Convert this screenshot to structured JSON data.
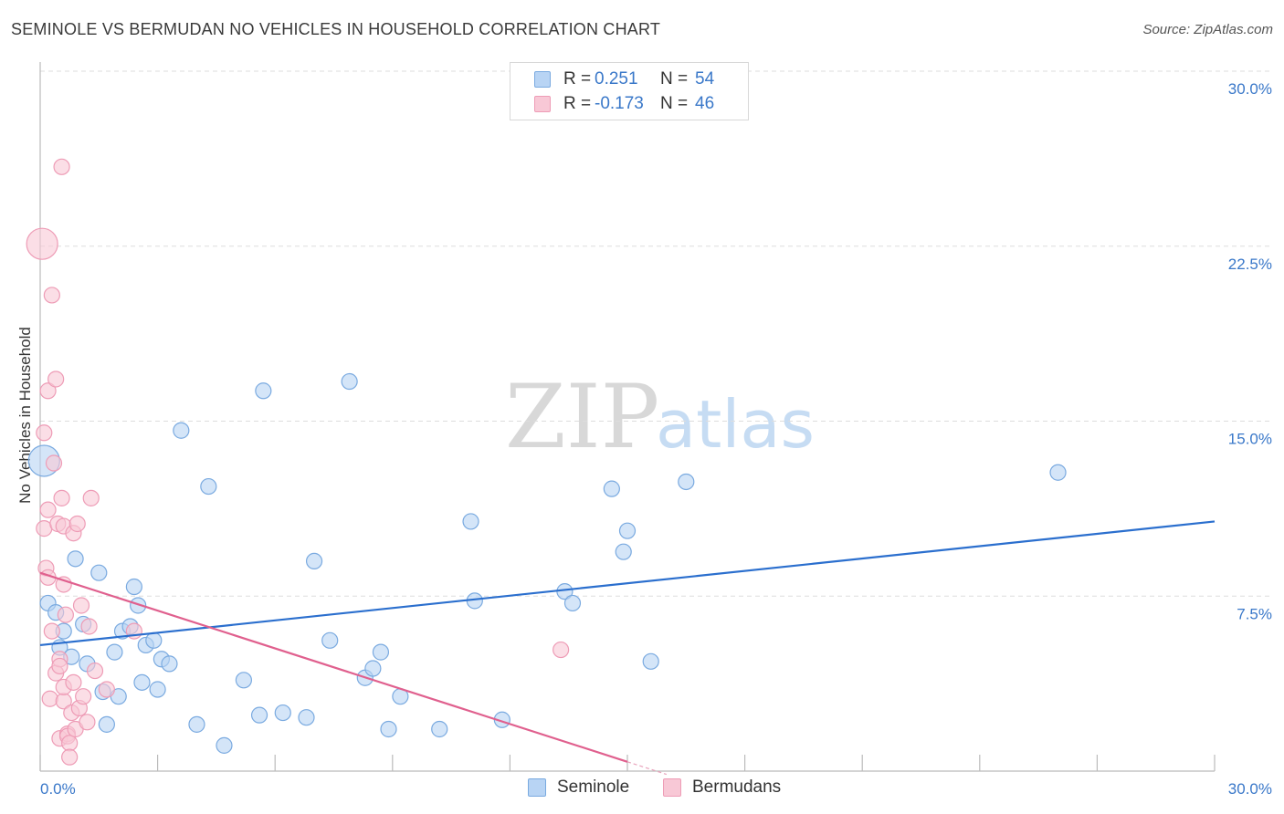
{
  "header": {
    "title": "SEMINOLE VS BERMUDAN NO VEHICLES IN HOUSEHOLD CORRELATION CHART",
    "source": "Source: ZipAtlas.com"
  },
  "watermark": {
    "zip": "ZIP",
    "atlas": "atlas"
  },
  "colors": {
    "seminole_fill": "#b8d4f4",
    "seminole_stroke": "#7aaae0",
    "seminole_line": "#2b6fce",
    "bermudan_fill": "#f8c8d6",
    "bermudan_stroke": "#ee9cb6",
    "bermudan_line": "#e0608e",
    "axis_text": "#3a78c9",
    "grid": "#dddddd"
  },
  "legend": {
    "rows": [
      {
        "r_label": "R =",
        "r_value": "0.251",
        "n_label": "N =",
        "n_value": "54"
      },
      {
        "r_label": "R =",
        "r_value": "-0.173",
        "n_label": "N =",
        "n_value": "46"
      }
    ]
  },
  "bottom_legend": {
    "seminole": "Seminole",
    "bermudans": "Bermudans"
  },
  "chart_data": {
    "type": "scatter",
    "title": "SEMINOLE VS BERMUDAN NO VEHICLES IN HOUSEHOLD CORRELATION CHART",
    "xlabel": "",
    "ylabel": "No Vehicles in Household",
    "xlim": [
      0,
      30
    ],
    "ylim": [
      0,
      30
    ],
    "x_tick_labels": [
      "0.0%",
      "30.0%"
    ],
    "y_ticks": [
      7.5,
      15.0,
      22.5,
      30.0
    ],
    "y_tick_labels": [
      "7.5%",
      "15.0%",
      "22.5%",
      "30.0%"
    ],
    "grid": true,
    "legend_position": "top-center",
    "series": [
      {
        "name": "Seminole",
        "r": 0.251,
        "n": 54,
        "trend": {
          "x": [
            0.0,
            30.0
          ],
          "y": [
            5.4,
            10.7
          ]
        },
        "points": [
          [
            0.1,
            13.3,
            "big"
          ],
          [
            0.2,
            7.2
          ],
          [
            0.4,
            6.8
          ],
          [
            0.5,
            5.3
          ],
          [
            0.6,
            6.0
          ],
          [
            0.8,
            4.9
          ],
          [
            0.9,
            9.1
          ],
          [
            1.1,
            6.3
          ],
          [
            1.2,
            4.6
          ],
          [
            1.5,
            8.5
          ],
          [
            1.6,
            3.4
          ],
          [
            1.7,
            2.0
          ],
          [
            1.9,
            5.1
          ],
          [
            2.0,
            3.2
          ],
          [
            2.1,
            6.0
          ],
          [
            2.3,
            6.2
          ],
          [
            2.4,
            7.9
          ],
          [
            2.5,
            7.1
          ],
          [
            2.6,
            3.8
          ],
          [
            2.7,
            5.4
          ],
          [
            2.9,
            5.6
          ],
          [
            3.0,
            3.5
          ],
          [
            3.1,
            4.8
          ],
          [
            3.3,
            4.6
          ],
          [
            3.6,
            14.6
          ],
          [
            4.0,
            2.0
          ],
          [
            4.3,
            12.2
          ],
          [
            4.7,
            1.1
          ],
          [
            5.2,
            3.9
          ],
          [
            5.6,
            2.4
          ],
          [
            5.7,
            16.3
          ],
          [
            6.2,
            2.5
          ],
          [
            6.8,
            2.3
          ],
          [
            7.0,
            9.0
          ],
          [
            7.4,
            5.6
          ],
          [
            7.9,
            16.7
          ],
          [
            8.3,
            4.0
          ],
          [
            8.5,
            4.4
          ],
          [
            8.7,
            5.1
          ],
          [
            8.9,
            1.8
          ],
          [
            9.2,
            3.2
          ],
          [
            10.2,
            1.8
          ],
          [
            11.0,
            10.7
          ],
          [
            11.1,
            7.3
          ],
          [
            11.8,
            2.2
          ],
          [
            13.4,
            7.7
          ],
          [
            13.6,
            7.2
          ],
          [
            14.6,
            12.1
          ],
          [
            14.9,
            9.4
          ],
          [
            15.0,
            10.3
          ],
          [
            15.6,
            4.7
          ],
          [
            16.5,
            12.4
          ],
          [
            26.0,
            12.8
          ]
        ]
      },
      {
        "name": "Bermudans",
        "r": -0.173,
        "n": 46,
        "trend": {
          "x": [
            0.0,
            15.0
          ],
          "y": [
            8.5,
            0.4
          ]
        },
        "points": [
          [
            0.05,
            22.6,
            "big"
          ],
          [
            0.1,
            14.5
          ],
          [
            0.1,
            10.4
          ],
          [
            0.15,
            8.7
          ],
          [
            0.2,
            16.3
          ],
          [
            0.2,
            11.2
          ],
          [
            0.2,
            8.3
          ],
          [
            0.25,
            3.1
          ],
          [
            0.3,
            20.4
          ],
          [
            0.3,
            6.0
          ],
          [
            0.35,
            13.2
          ],
          [
            0.4,
            16.8
          ],
          [
            0.4,
            4.2
          ],
          [
            0.45,
            10.6
          ],
          [
            0.5,
            4.8
          ],
          [
            0.5,
            4.5
          ],
          [
            0.5,
            1.4
          ],
          [
            0.55,
            25.9
          ],
          [
            0.55,
            11.7
          ],
          [
            0.6,
            10.5
          ],
          [
            0.6,
            8.0
          ],
          [
            0.6,
            3.0
          ],
          [
            0.6,
            3.6
          ],
          [
            0.65,
            6.7
          ],
          [
            0.7,
            1.6
          ],
          [
            0.7,
            1.5
          ],
          [
            0.75,
            1.2
          ],
          [
            0.75,
            0.6
          ],
          [
            0.8,
            2.5
          ],
          [
            0.85,
            3.8
          ],
          [
            0.85,
            10.2
          ],
          [
            0.9,
            1.8
          ],
          [
            0.95,
            10.6
          ],
          [
            1.0,
            2.7
          ],
          [
            1.05,
            7.1
          ],
          [
            1.1,
            3.2
          ],
          [
            1.2,
            2.1
          ],
          [
            1.25,
            6.2
          ],
          [
            1.3,
            11.7
          ],
          [
            1.4,
            4.3
          ],
          [
            1.7,
            3.5
          ],
          [
            2.4,
            6.0
          ],
          [
            13.3,
            5.2
          ]
        ]
      }
    ]
  }
}
